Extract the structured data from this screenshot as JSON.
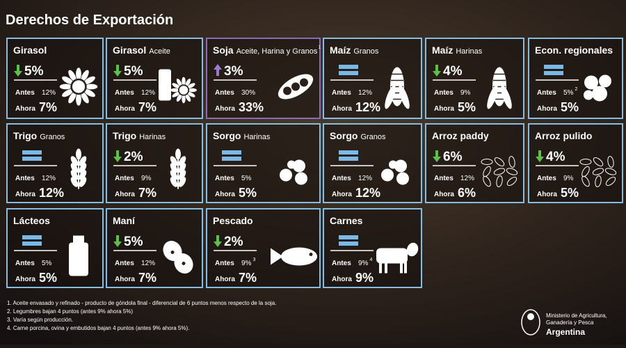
{
  "header": {
    "title": "Derechos de Exportación"
  },
  "cards": [
    {
      "title": "Girasol",
      "trend": "down",
      "change": "5%",
      "antes_label": "Antes",
      "antes": "12%",
      "ahora_label": "Ahora",
      "ahora": "7%"
    },
    {
      "title": "Girasol",
      "subtitle": "Aceite",
      "trend": "down",
      "change": "5%",
      "antes_label": "Antes",
      "antes": "12%",
      "ahora_label": "Ahora",
      "ahora": "7%"
    },
    {
      "title": "Soja",
      "subtitle": "Aceite, Harina y Granos",
      "title_note": "1",
      "trend": "up",
      "change": "3%",
      "antes_label": "Antes",
      "antes": "30%",
      "ahora_label": "Ahora",
      "ahora": "33%"
    },
    {
      "title": "Maíz",
      "subtitle": "Granos",
      "trend": "equal",
      "antes_label": "Antes",
      "antes": "12%",
      "ahora_label": "Ahora",
      "ahora": "12%"
    },
    {
      "title": "Maíz",
      "subtitle": "Harinas",
      "trend": "down",
      "change": "4%",
      "antes_label": "Antes",
      "antes": "9%",
      "ahora_label": "Ahora",
      "ahora": "5%"
    },
    {
      "title": "Econ. regionales",
      "trend": "equal",
      "antes_label": "Antes",
      "antes": "5%",
      "antes_note": "2",
      "ahora_label": "Ahora",
      "ahora": "5%"
    },
    {
      "title": "Trigo",
      "subtitle": "Granos",
      "trend": "equal",
      "antes_label": "Antes",
      "antes": "12%",
      "ahora_label": "Ahora",
      "ahora": "12%"
    },
    {
      "title": "Trigo",
      "subtitle": "Harinas",
      "trend": "down",
      "change": "2%",
      "antes_label": "Antes",
      "antes": "9%",
      "ahora_label": "Ahora",
      "ahora": "7%"
    },
    {
      "title": "Sorgo",
      "subtitle": "Harinas",
      "trend": "equal",
      "antes_label": "Antes",
      "antes": "5%",
      "ahora_label": "Ahora",
      "ahora": "5%"
    },
    {
      "title": "Sorgo",
      "subtitle": "Granos",
      "trend": "equal",
      "antes_label": "Antes",
      "antes": "12%",
      "ahora_label": "Ahora",
      "ahora": "12%"
    },
    {
      "title": "Arroz paddy",
      "trend": "down",
      "change": "6%",
      "antes_label": "Antes",
      "antes": "12%",
      "ahora_label": "Ahora",
      "ahora": "6%"
    },
    {
      "title": "Arroz pulido",
      "trend": "down",
      "change": "4%",
      "antes_label": "Antes",
      "antes": "9%",
      "ahora_label": "Ahora",
      "ahora": "5%"
    },
    {
      "title": "Lácteos",
      "trend": "equal",
      "antes_label": "Antes",
      "antes": "5%",
      "ahora_label": "Ahora",
      "ahora": "5%"
    },
    {
      "title": "Maní",
      "trend": "down",
      "change": "5%",
      "antes_label": "Antes",
      "antes": "12%",
      "ahora_label": "Ahora",
      "ahora": "7%"
    },
    {
      "title": "Pescado",
      "trend": "down",
      "change": "2%",
      "antes_label": "Antes",
      "antes": "9%",
      "antes_note": "3",
      "ahora_label": "Ahora",
      "ahora": "7%"
    },
    {
      "title": "Carnes",
      "trend": "equal",
      "antes_label": "Antes",
      "antes": "9%",
      "antes_note": "4",
      "ahora_label": "Ahora",
      "ahora": "9%"
    }
  ],
  "footnotes": [
    "1. Aceite envasado y refinado - producto de góndola final - diferencial de 6 puntos menos respecto de la soja.",
    "2. Legumbres bajan 4 puntos (antes 9% ahora 5%)",
    "3. Varía según producción.",
    "4. Carne porcina, ovina y embutidos bajan 4 puntos (antes 9% ahora 5%)."
  ],
  "logo": {
    "ministry_line1": "Ministerio de Agricultura,",
    "ministry_line2": "Ganadería y Pesca",
    "country": "Argentina"
  }
}
